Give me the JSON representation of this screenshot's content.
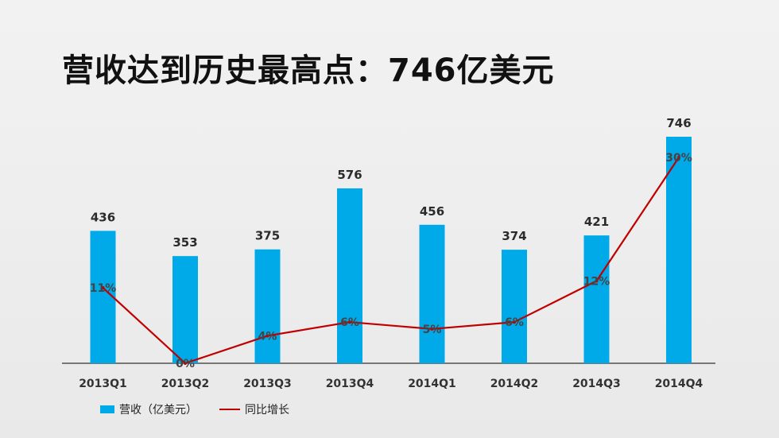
{
  "title": "营收达到历史最高点：746亿美元",
  "legend": {
    "bar_label": "营收（亿美元）",
    "line_label": "同比增长"
  },
  "colors": {
    "bar": "#00a9e8",
    "line": "#c00000",
    "bar_label": "#2b2b2b",
    "pct_label": "#444444",
    "axis": "#333333"
  },
  "chart_data": {
    "type": "bar",
    "categories": [
      "2013Q1",
      "2013Q2",
      "2013Q3",
      "2013Q4",
      "2014Q1",
      "2014Q2",
      "2014Q3",
      "2014Q4"
    ],
    "series": [
      {
        "name": "营收（亿美元）",
        "type": "bar",
        "values": [
          436,
          353,
          375,
          576,
          456,
          374,
          421,
          746
        ],
        "labels": [
          "436",
          "353",
          "375",
          "576",
          "456",
          "374",
          "421",
          "746"
        ]
      },
      {
        "name": "同比增长",
        "type": "line",
        "values": [
          11,
          0,
          4,
          6,
          5,
          6,
          12,
          30
        ],
        "labels": [
          "11%",
          "0%",
          "4%",
          "6%",
          "5%",
          "6%",
          "12%",
          "30%"
        ]
      }
    ],
    "ylim": [
      0,
      746
    ],
    "y2lim": [
      0,
      30
    ],
    "grid": false,
    "legend_position": "bottom-left"
  }
}
